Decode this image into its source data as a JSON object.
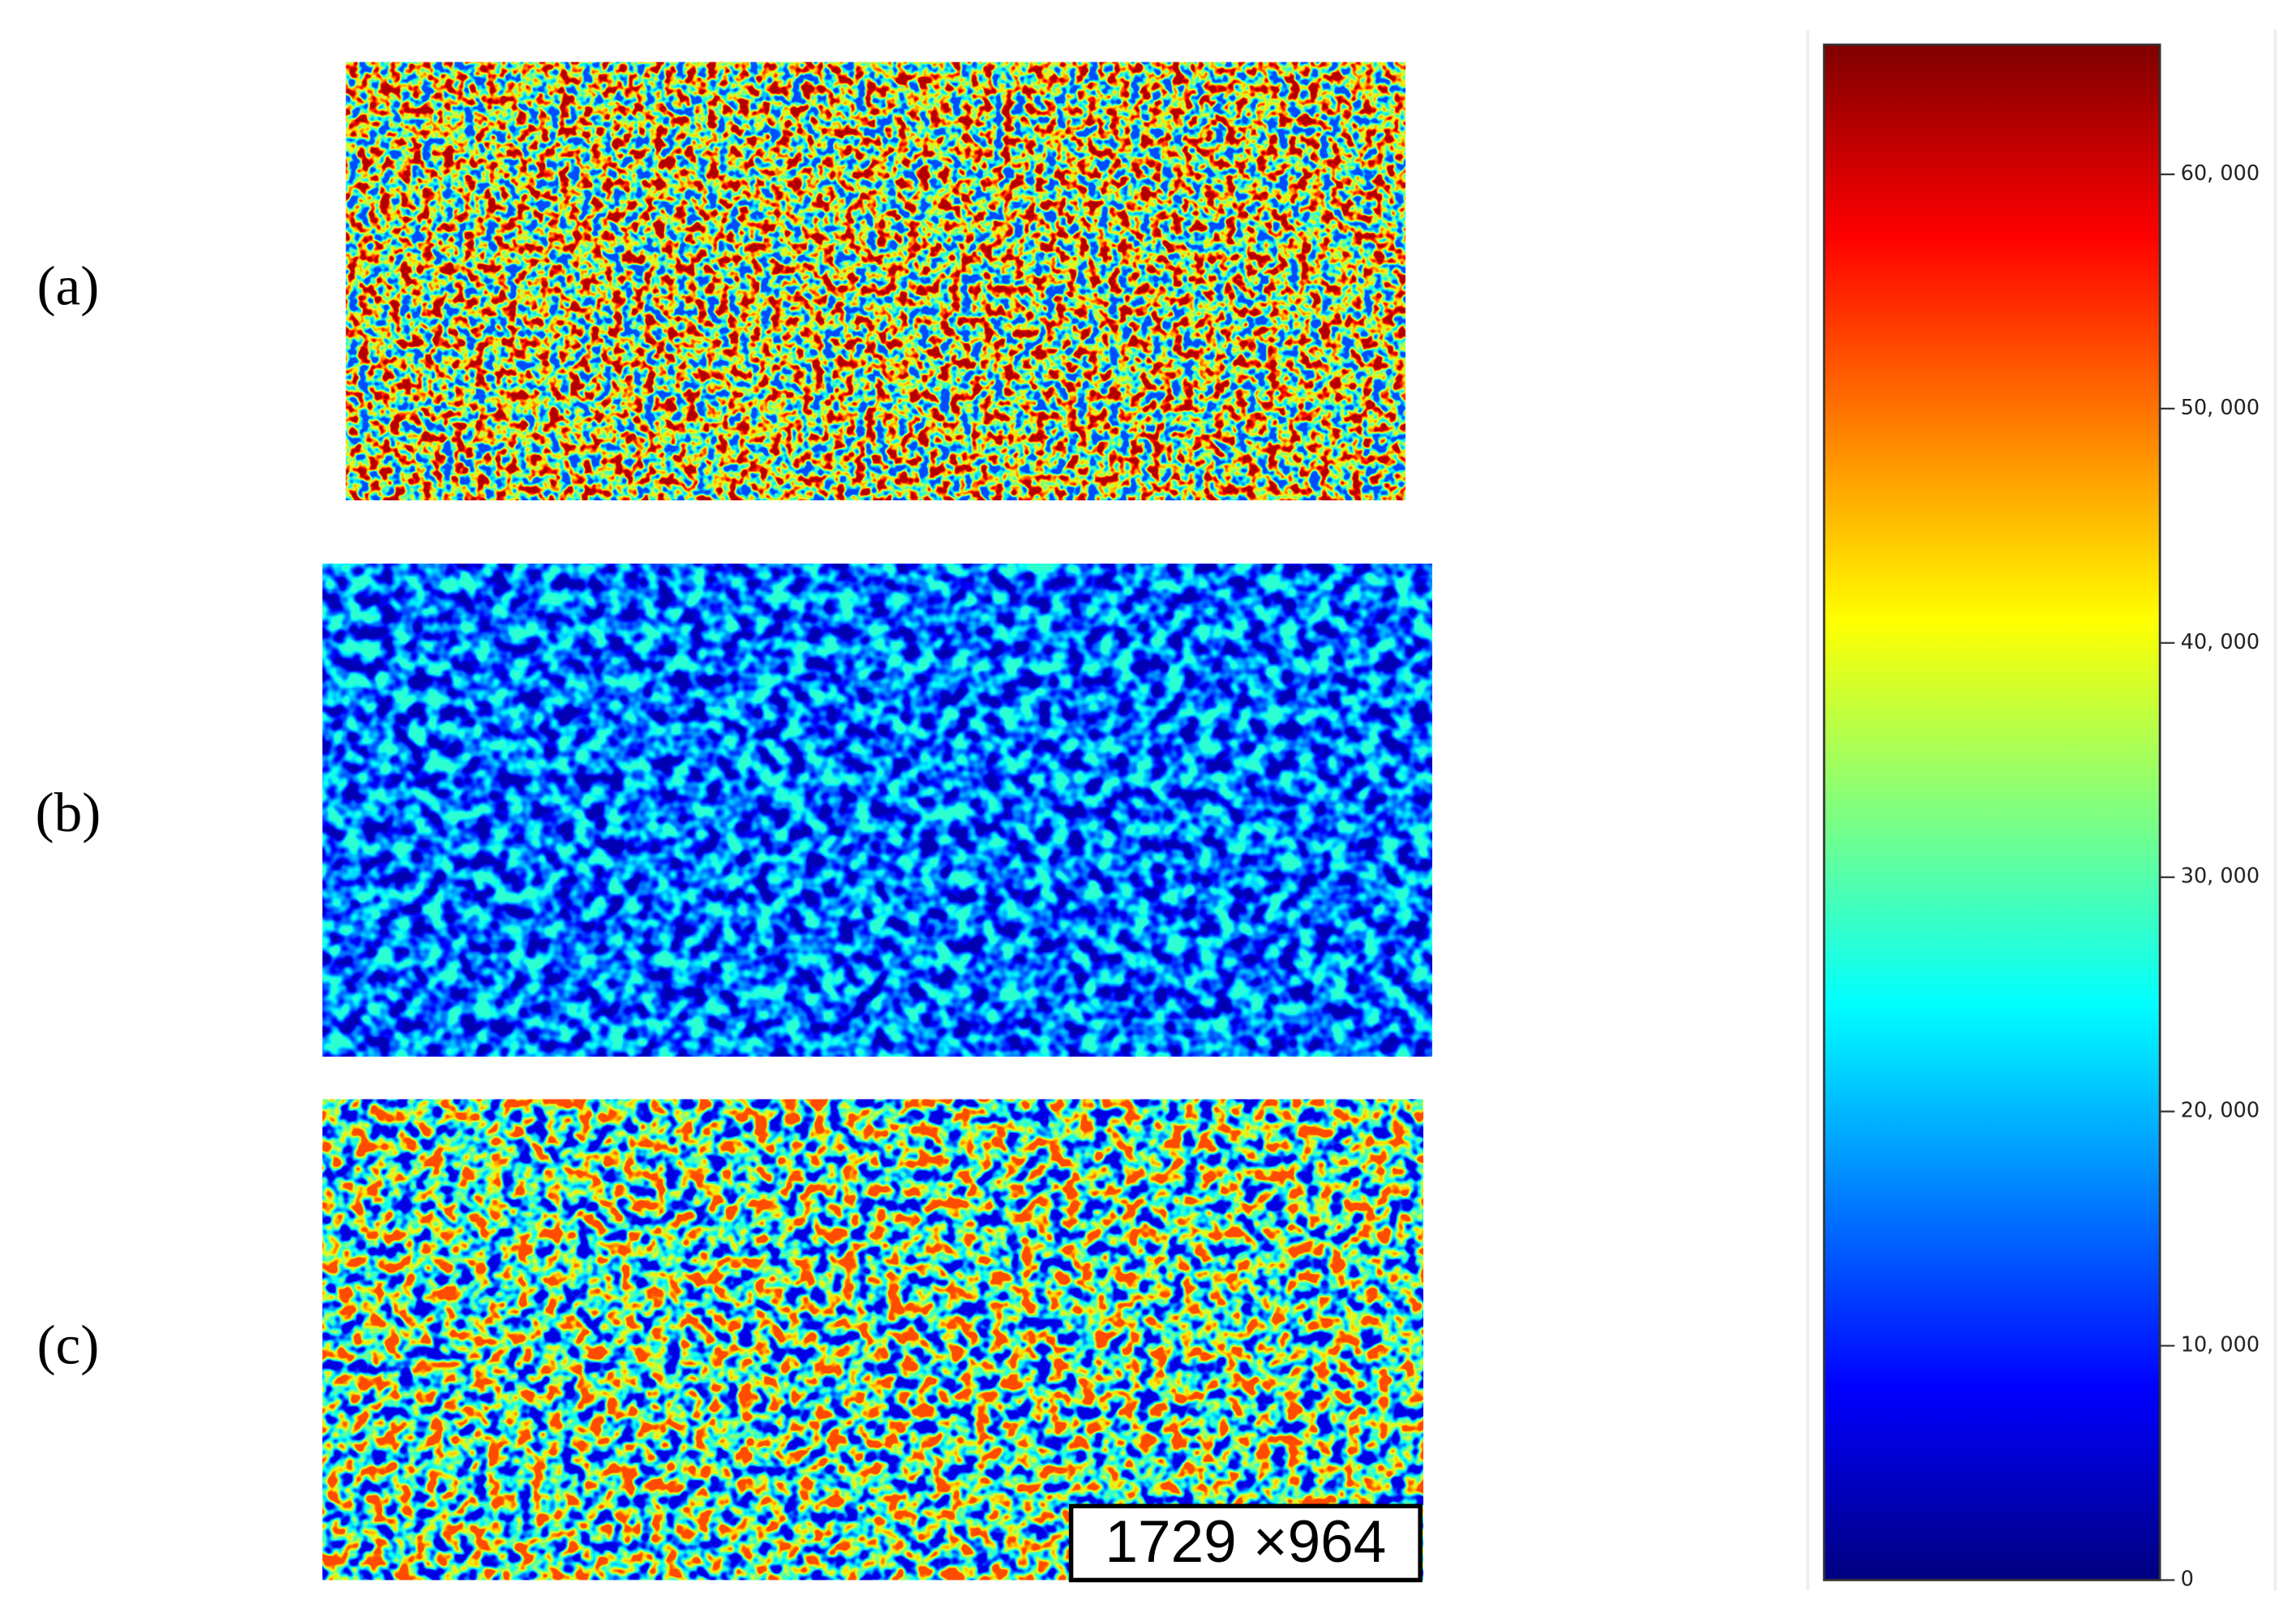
{
  "panels": [
    {
      "label": "(a)"
    },
    {
      "label": "(b)"
    },
    {
      "label": "(c)",
      "annotation": "1729 ×964"
    }
  ],
  "colorbar": {
    "ylim": [
      0,
      65535
    ],
    "yticks": [
      0,
      {
        "value": 10000,
        "label": "10, 000"
      },
      {
        "value": 20000,
        "label": "20, 000"
      },
      {
        "value": 30000,
        "label": "30, 000"
      },
      {
        "value": 40000,
        "label": "40, 000"
      },
      {
        "value": 50000,
        "label": "50, 000"
      },
      {
        "value": 60000,
        "label": "60, 000"
      }
    ]
  }
}
